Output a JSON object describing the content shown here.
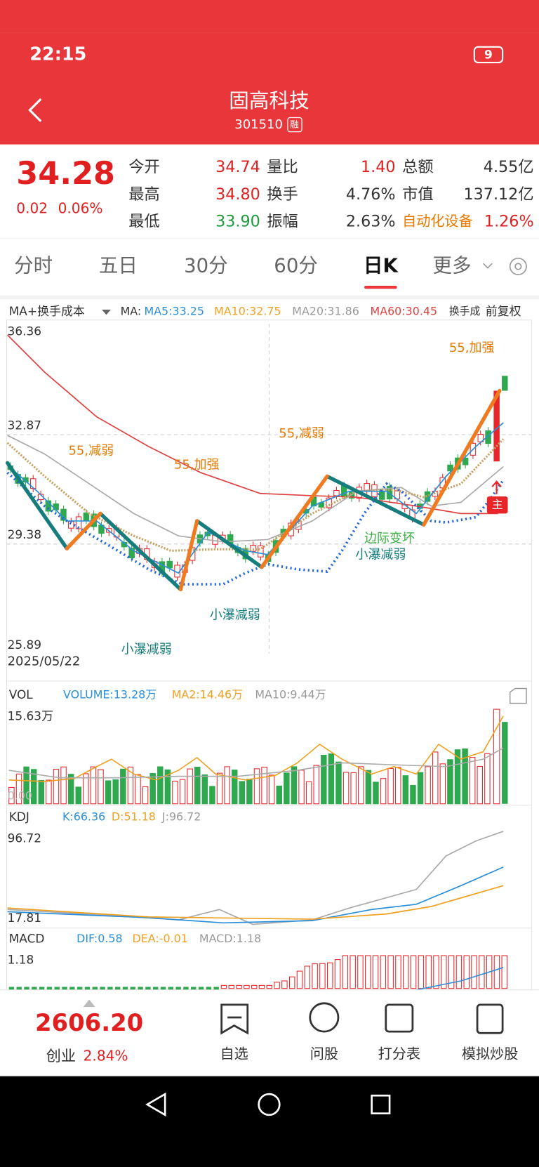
{
  "status_bar": {
    "time": "22:15",
    "battery": "9"
  },
  "header": {
    "title": "固高科技",
    "code": "301510",
    "badge": "融"
  },
  "quote": {
    "price": "34.28",
    "change": "0.02",
    "change_pct": "0.06%",
    "fields": [
      {
        "label": "今开",
        "value": "34.74"
      },
      {
        "label": "最高",
        "value": "34.80"
      },
      {
        "label": "最低",
        "value": "33.90"
      },
      {
        "label": "量比",
        "value": "1.40"
      },
      {
        "label": "换手",
        "value": "4.76%"
      },
      {
        "label": "振幅",
        "value": "2.63%"
      },
      {
        "label": "总额",
        "value": "4.55亿"
      },
      {
        "label": "市值",
        "value": "137.12亿"
      },
      {
        "label": "自动化设备",
        "value": "1.26%"
      }
    ]
  },
  "tabs": [
    "分时",
    "五日",
    "30分",
    "60分",
    "日K",
    "更多"
  ],
  "kline": {
    "indicator": "MA+换手成本",
    "legend": [
      "MA:",
      "MA5:33.25",
      "MA10:32.75",
      "MA20:31.86",
      "MA60:30.45",
      "换手成",
      "前复权"
    ],
    "y_labels": [
      "36.36",
      "32.87",
      "29.38",
      "25.89"
    ],
    "start_date": "2025/05/22",
    "annotations": [
      "55,加强",
      "55,减弱",
      "55,减弱",
      "55,加强",
      "边际变坏",
      "小瀑减弱",
      "小瀑减弱",
      "小瀑减弱",
      "主"
    ]
  },
  "volume": {
    "name": "VOL",
    "legend": [
      "VOLUME:13.28万",
      "MA2:14.46万",
      "MA10:9.44万"
    ],
    "y_labels": [
      "15.63万",
      "0.00"
    ]
  },
  "kdj": {
    "name": "KDJ",
    "legend": [
      "K:66.36",
      "D:51.18",
      "J:96.72"
    ],
    "y_labels": [
      "96.72",
      "17.81"
    ]
  },
  "macd": {
    "name": "MACD",
    "legend": [
      "DIF:0.58",
      "DEA:-0.01",
      "MACD:1.18"
    ],
    "y_labels": [
      "1.18"
    ]
  },
  "index": {
    "value": "2606.20",
    "name": "创业",
    "change_pct": "2.84%"
  },
  "nav": [
    "自选",
    "问股",
    "打分表",
    "模拟炒股"
  ]
}
